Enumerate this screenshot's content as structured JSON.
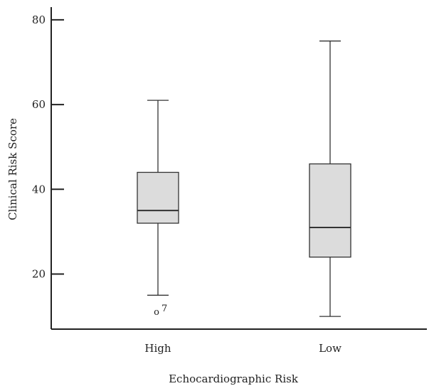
{
  "chart_data": {
    "type": "box",
    "xlabel": "Echocardiographic Risk",
    "ylabel": "Clinical Risk Score",
    "yticks": [
      20,
      40,
      60,
      80
    ],
    "ylim": [
      7,
      83
    ],
    "grid": false,
    "categories": [
      "High",
      "Low"
    ],
    "boxes": [
      {
        "category": "High",
        "min": 15,
        "q1": 32,
        "median": 35,
        "q3": 44,
        "max": 61,
        "outliers": [
          {
            "value": 11,
            "label": "o",
            "case_id": "7"
          }
        ]
      },
      {
        "category": "Low",
        "min": 10,
        "q1": 24,
        "median": 31,
        "q3": 46,
        "max": 75,
        "outliers": []
      }
    ],
    "box_fill": "#dcdcdc",
    "line_color": "#333333"
  }
}
